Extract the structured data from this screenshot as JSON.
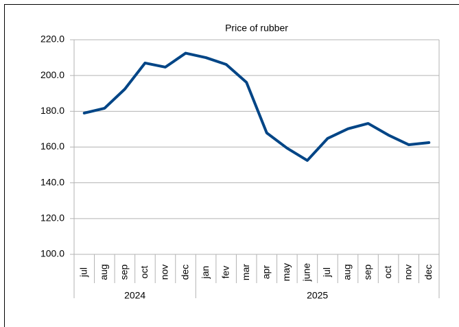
{
  "chart_data": {
    "type": "line",
    "title": "Price of rubber",
    "category_groups": [
      {
        "label": "2024",
        "categories": [
          "jul",
          "aug",
          "sep",
          "oct",
          "nov",
          "dec"
        ]
      },
      {
        "label": "2025",
        "categories": [
          "jan",
          "fev",
          "mar",
          "apr",
          "may",
          "june",
          "jul",
          "aug",
          "sep",
          "oct",
          "nov",
          "dec"
        ]
      }
    ],
    "series": [
      {
        "name": "Price of rubber",
        "color": "#004586",
        "values": [
          179.0,
          181.7,
          192.4,
          207.0,
          204.7,
          212.5,
          210.0,
          206.2,
          196.2,
          167.9,
          159.4,
          152.5,
          164.8,
          170.2,
          173.2,
          166.7,
          161.3,
          162.5
        ]
      }
    ],
    "ylim": [
      100,
      220
    ],
    "yticks": [
      {
        "value": 100,
        "label": "100.0"
      },
      {
        "value": 120,
        "label": "120.0"
      },
      {
        "value": 140,
        "label": "140.0"
      },
      {
        "value": 160,
        "label": "160.0"
      },
      {
        "value": 180,
        "label": "180.0"
      },
      {
        "value": 200,
        "label": "200.0"
      },
      {
        "value": 220,
        "label": "220.0"
      }
    ],
    "grid": true
  }
}
